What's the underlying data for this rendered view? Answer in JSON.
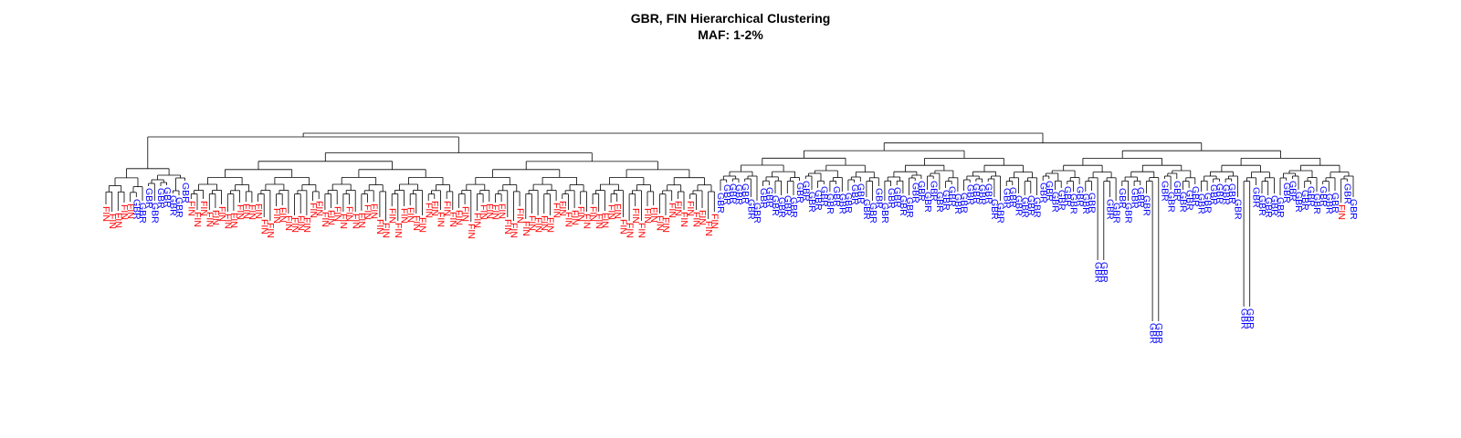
{
  "title": {
    "line1": "GBR, FIN Hierarchical Clustering",
    "line2": "MAF: 1-2%"
  },
  "populations": {
    "FIN": {
      "label": "FIN",
      "color": "#ff0000"
    },
    "GBR": {
      "label": "GBR",
      "color": "#0000ff"
    }
  },
  "branch_color": "#000000",
  "leaf_order": "FFFFFGGGGGGGGGFFFFFFFFFFFFFFFFFFFFFFFFFFFFFFFFFFFFFFFFFFFFFFFFFFFFFFFFFFFFFFFFFFFFFFFFFFFFFFFFFFFFFFFGGGGGGGGGGGGGGGGGGGGGGGGGGGGGGGGGGGGGGGGGGGGGGGGGGGGGGGGGGGGGGGGGGGGGGGGGGGGGGGGGGGGGGGGGGGGGGGGGGGGGGFGG"
}
